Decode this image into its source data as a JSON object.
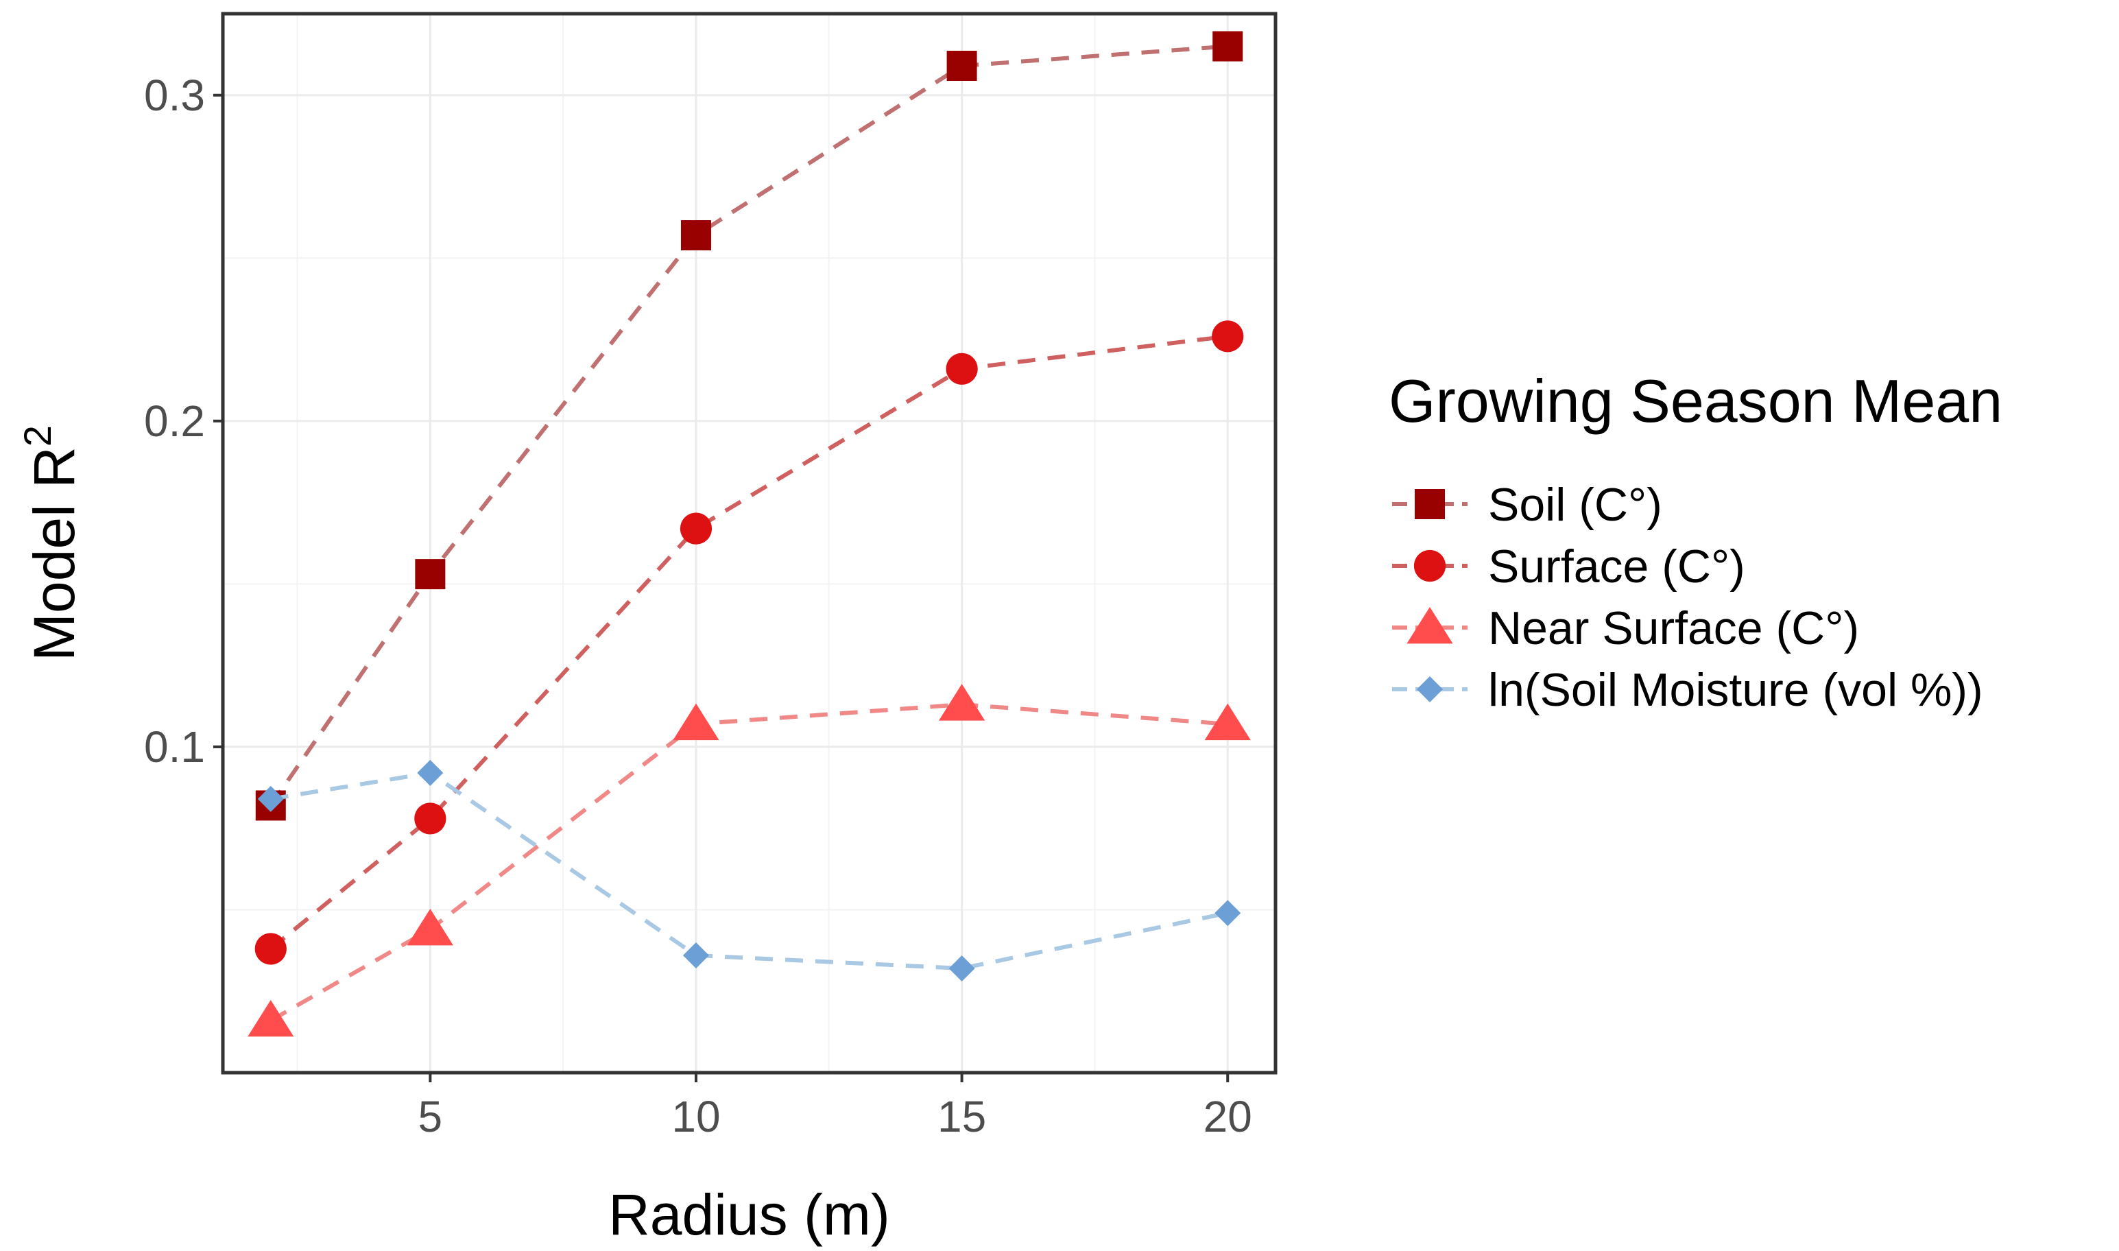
{
  "chart_data": {
    "type": "line",
    "xlabel": "Radius (m)",
    "ylabel": "Model R",
    "ylabel_superscript": "2",
    "x": [
      2,
      5,
      10,
      15,
      20
    ],
    "xlim": [
      1.1,
      20.9
    ],
    "ylim": [
      0.0,
      0.325
    ],
    "x_ticks": [
      5,
      10,
      15,
      20
    ],
    "y_ticks": [
      0.1,
      0.2,
      0.3
    ],
    "x_tick_labels": [
      "5",
      "10",
      "15",
      "20"
    ],
    "y_tick_labels": [
      "0.1",
      "0.2",
      "0.3"
    ],
    "legend": {
      "title": "Growing Season Mean",
      "position": "right"
    },
    "grid": true,
    "series": [
      {
        "name": "Soil (C°)",
        "marker": "square",
        "color": "#990000",
        "line_color": "#c07070",
        "values": [
          0.082,
          0.153,
          0.257,
          0.309,
          0.315
        ]
      },
      {
        "name": "Surface (C°)",
        "marker": "circle",
        "color": "#dd1111",
        "line_color": "#d06060",
        "values": [
          0.038,
          0.078,
          0.167,
          0.216,
          0.226
        ]
      },
      {
        "name": "Near Surface (C°)",
        "marker": "triangle",
        "color": "#ff4d4d",
        "line_color": "#f08888",
        "values": [
          0.016,
          0.044,
          0.107,
          0.113,
          0.107
        ]
      },
      {
        "name": "ln(Soil Moisture (vol %))",
        "marker": "diamond",
        "color": "#6b9fd6",
        "line_color": "#a9c8e4",
        "values": [
          0.084,
          0.092,
          0.036,
          0.032,
          0.049
        ]
      }
    ]
  }
}
